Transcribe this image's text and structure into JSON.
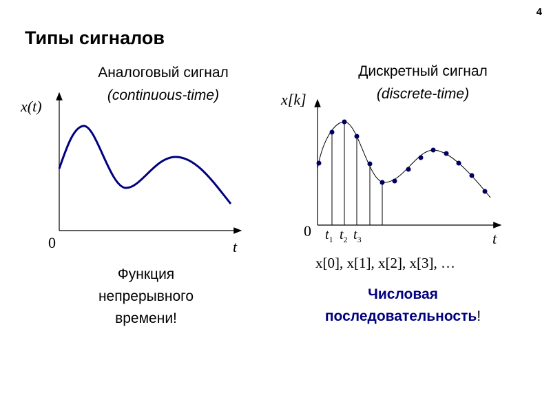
{
  "page_number": "4",
  "title": "Типы сигналов",
  "analog": {
    "heading": "Аналоговый сигнал",
    "subheading": "(continuous-time)",
    "y_label": "x(t)",
    "origin": "0",
    "x_label": "t",
    "caption": [
      "Функция",
      "непрерывного",
      "времени!"
    ]
  },
  "discrete": {
    "heading": "Дискретный сигнал",
    "subheading": "(discrete-time)",
    "y_label": "x[k]",
    "origin": "0",
    "x_label": "t",
    "time_labels": [
      {
        "base": "t",
        "sub": "1"
      },
      {
        "base": "t",
        "sub": "2"
      },
      {
        "base": "t",
        "sub": "3"
      }
    ],
    "sequence": "x[0], x[1], x[2], x[3], …",
    "caption": [
      "Числовая",
      "последовательность",
      "!"
    ]
  }
}
